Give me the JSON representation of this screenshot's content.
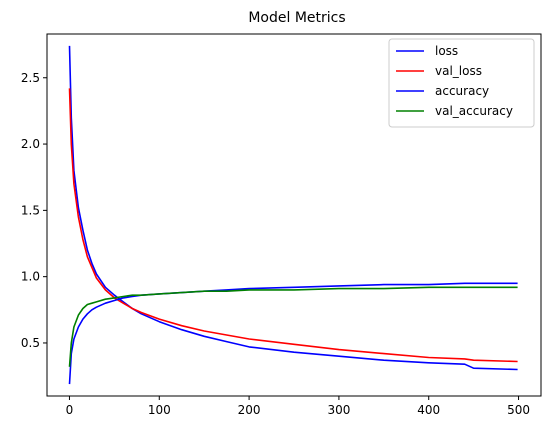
{
  "chart_data": {
    "type": "line",
    "title": "Model Metrics",
    "xlabel": "",
    "ylabel": "",
    "xlim": [
      -25,
      525
    ],
    "ylim": [
      0.1,
      2.83
    ],
    "xticks": [
      0,
      100,
      200,
      300,
      400,
      500
    ],
    "yticks": [
      0.5,
      1.0,
      1.5,
      2.0,
      2.5
    ],
    "ytick_labels": [
      "0.5",
      "1.0",
      "1.5",
      "2.0",
      "2.5"
    ],
    "grid": false,
    "legend_position": "top-right",
    "x": [
      0,
      2,
      5,
      10,
      15,
      20,
      25,
      30,
      40,
      50,
      60,
      70,
      80,
      100,
      125,
      150,
      175,
      200,
      250,
      300,
      350,
      400,
      440,
      450,
      499
    ],
    "series": [
      {
        "name": "loss",
        "color": "#0000ff",
        "values": [
          2.74,
          2.2,
          1.8,
          1.52,
          1.35,
          1.2,
          1.1,
          1.02,
          0.92,
          0.86,
          0.81,
          0.76,
          0.72,
          0.66,
          0.6,
          0.55,
          0.51,
          0.47,
          0.43,
          0.4,
          0.37,
          0.35,
          0.34,
          0.31,
          0.3
        ]
      },
      {
        "name": "val_loss",
        "color": "#ff0000",
        "values": [
          2.42,
          2.0,
          1.7,
          1.45,
          1.28,
          1.15,
          1.07,
          0.99,
          0.9,
          0.84,
          0.8,
          0.76,
          0.73,
          0.68,
          0.63,
          0.59,
          0.56,
          0.53,
          0.49,
          0.45,
          0.42,
          0.39,
          0.38,
          0.37,
          0.36
        ]
      },
      {
        "name": "accuracy",
        "color": "#0000ff",
        "values": [
          0.19,
          0.42,
          0.53,
          0.62,
          0.68,
          0.72,
          0.75,
          0.77,
          0.8,
          0.82,
          0.84,
          0.85,
          0.86,
          0.87,
          0.88,
          0.89,
          0.9,
          0.91,
          0.92,
          0.93,
          0.94,
          0.94,
          0.95,
          0.95,
          0.95
        ]
      },
      {
        "name": "val_accuracy",
        "color": "#008000",
        "values": [
          0.32,
          0.5,
          0.62,
          0.71,
          0.76,
          0.79,
          0.8,
          0.81,
          0.83,
          0.84,
          0.85,
          0.86,
          0.86,
          0.87,
          0.88,
          0.89,
          0.89,
          0.9,
          0.9,
          0.91,
          0.91,
          0.92,
          0.92,
          0.92,
          0.92
        ]
      }
    ]
  }
}
